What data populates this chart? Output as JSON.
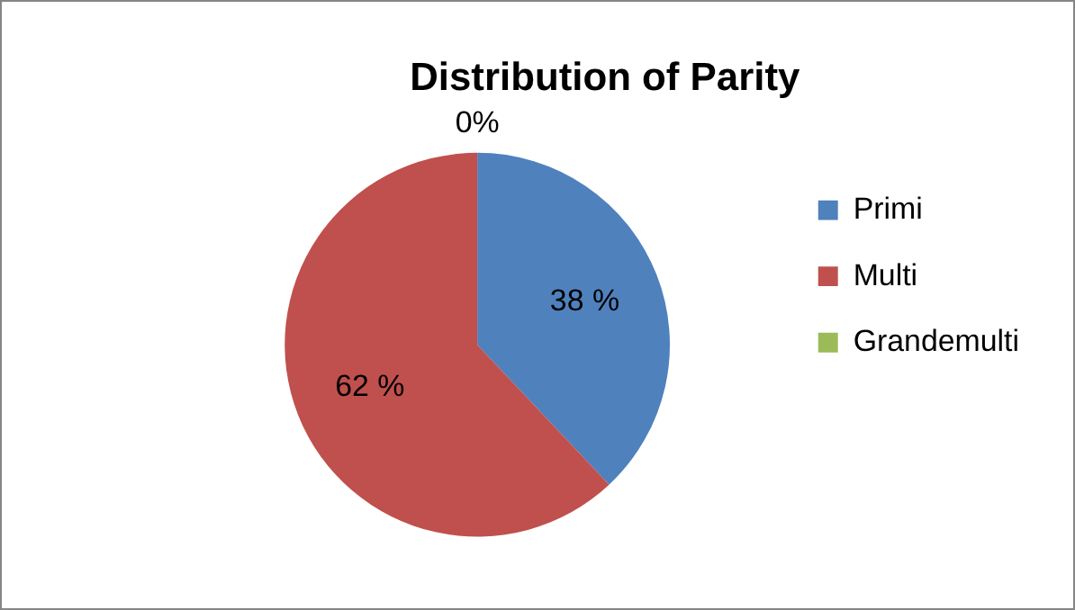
{
  "chart_data": {
    "type": "pie",
    "title": "Distribution of Parity",
    "categories": [
      "Primi",
      "Multi",
      "Grandemulti"
    ],
    "values": [
      38,
      62,
      0
    ],
    "value_labels": [
      "38 %",
      "62 %",
      "0%"
    ],
    "colors": [
      "#4f81bd",
      "#c0504d",
      "#9bbb59"
    ],
    "legend": "right"
  }
}
